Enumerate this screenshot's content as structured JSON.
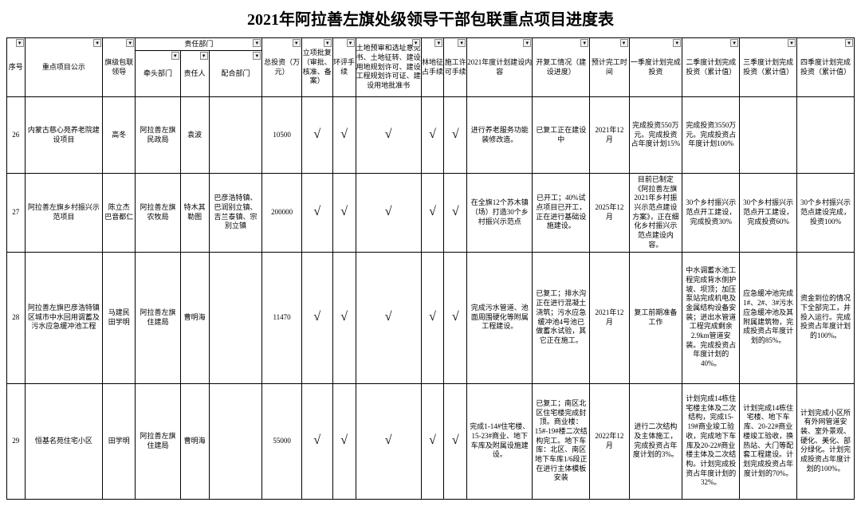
{
  "title": "2021年阿拉善左旗处级领导干部包联重点项目进度表",
  "headers": {
    "seq": "序号",
    "project": "重点项目公示",
    "flagLeader": "旗级包联领导",
    "leadDept": "牵头部门",
    "respPerson": "责任人",
    "coopDept": "配合部门",
    "totalInvest": "总投资（万元）",
    "approval": "立项批复（审批、核准、备案）",
    "eia": "环评手续",
    "land": "土地预审和选址意见书、土地征转、建设用地规划许可、建设工程规划许可证、建设用地批准书",
    "forest": "林地征占手续",
    "construct": "施工许可手续",
    "planContent": "2021年度计划建设内容",
    "startStatus": "开复工情况（建设进度）",
    "expComplete": "预计完工时间",
    "q1": "一季度计划完成投资",
    "q2": "二季度计划完成投资（累计值）",
    "q3": "三季度计划完成投资（累计值）",
    "q4": "四季度计划完成投资（累计值）",
    "respGroup": "责任部门"
  },
  "columnWidths": {
    "seq": 22,
    "project": 95,
    "flagLeader": 40,
    "leadDept": 55,
    "respPerson": 35,
    "coopDept": 65,
    "totalInvest": 48,
    "approval": 38,
    "eia": 28,
    "land": 80,
    "forest": 28,
    "construct": 28,
    "planContent": 80,
    "startStatus": 70,
    "expComplete": 48,
    "q1": 65,
    "q2": 70,
    "q3": 70,
    "q4": 70
  },
  "checkmark": "√",
  "rows": [
    {
      "seq": "26",
      "project": "内蒙古慈心苑养老院建设项目",
      "flagLeader": "高冬",
      "leadDept": "阿拉善左旗民政局",
      "respPerson": "袁波",
      "coopDept": "",
      "totalInvest": "10500",
      "approval": true,
      "eia": true,
      "land": true,
      "forest": true,
      "construct": true,
      "planContent": "进行养老服务功能装修改造。",
      "startStatus": "已复工正在建设中",
      "expComplete": "2021年12月",
      "q1": "完成投资550万元。完成投资占年度计划15%",
      "q2": "完成投资3550万元。完成投资占年度计划100%",
      "q3": "",
      "q4": ""
    },
    {
      "seq": "27",
      "project": "阿拉善左旗乡村振兴示范项目",
      "flagLeader": "陈立杰\n巴音都仁",
      "leadDept": "阿拉善左旗农牧局",
      "respPerson": "特木其勒图",
      "coopDept": "巴彦浩特镇、巴润别立镇、吉兰泰镇、宗别立镇",
      "totalInvest": "200000",
      "approval": true,
      "eia": true,
      "land": true,
      "forest": true,
      "construct": true,
      "planContent": "在全旗12个苏木镇（场）打造30个乡村振兴示范点",
      "startStatus": "已开工；40%试点项目已开工，正在进行基础设施建设。",
      "expComplete": "2025年12月",
      "q1": "目前已制定《阿拉善左旗2021年乡村振兴示范点建设方案》，正在细化乡村振兴示范点建设内容。",
      "q2": "30个乡村振兴示范点开工建设，完成投资30%",
      "q3": "30个乡村振兴示范点开工建设，完成投资60%",
      "q4": "30个乡村振兴示范点建设完成，投资100%"
    },
    {
      "seq": "28",
      "project": "阿拉善左旗巴彦浩特镇区城市中水回用调蓄及污水应急缓冲池工程",
      "flagLeader": "马建民\n田学明",
      "leadDept": "阿拉善左旗住建局",
      "respPerson": "曹明海",
      "coopDept": "",
      "totalInvest": "11470",
      "approval": true,
      "eia": true,
      "land": true,
      "forest": true,
      "construct": true,
      "planContent": "完成污水管道、池面周围硬化等附属工程建设。",
      "startStatus": "已复工；排水沟正在进行混凝土浇筑；污水应急缓冲池4号池已做蓄水试验，其它正在施工。",
      "expComplete": "2021年12月",
      "q1": "复工前期准备工作",
      "q2": "中水调蓄水池工程完成背水侧护坡、坝顶；加压泵站完成机电及金属结构设备安装；进出水管道工程完成剩余2.9km管道安装。完成投资占年度计划的40%。",
      "q3": "应急缓冲池完成1#、2#、3#污水应急缓冲池及其附属建筑物，完成投资占年度计划的85%。",
      "q4": "资金到位的情况下全部完工，并投入运行。完成投资占年度计划的100%。"
    },
    {
      "seq": "29",
      "project": "恒基名苑住宅小区",
      "flagLeader": "田学明",
      "leadDept": "阿拉善左旗住建局",
      "respPerson": "曹明海",
      "coopDept": "",
      "totalInvest": "55000",
      "approval": true,
      "eia": true,
      "land": true,
      "forest": true,
      "construct": true,
      "planContent": "完成1-14#住宅楼、15-23#商业、地下车库及附属设施建设。",
      "startStatus": "已复工；南区北区住宅楼完成封顶。商业楼：15#-19#楼二次结构完工。地下车库：北区、南区地下车库1/6段正在进行主体模板安装",
      "expComplete": "2022年12月",
      "q1": "进行二次结构及主体施工，完成投资占年度计划的3%。",
      "q2": "计划完成14栋住宅楼主体及二次结构，完成15-19#商业竣工验收，完成地下车库及20-22#商业楼主体及二次结构。计划完成投资占年度计划的32%。",
      "q3": "计划完成14栋住宅楼、地下车库、20-22#商业楼竣工验收，换热站、大门等配套工程建设。计划完成投资占年度计划的70%。",
      "q4": "计划完成小区所有外网管道安装、室外景观、硬化、美化、部分绿化。计划完成投资占年度计划的100%。"
    }
  ]
}
